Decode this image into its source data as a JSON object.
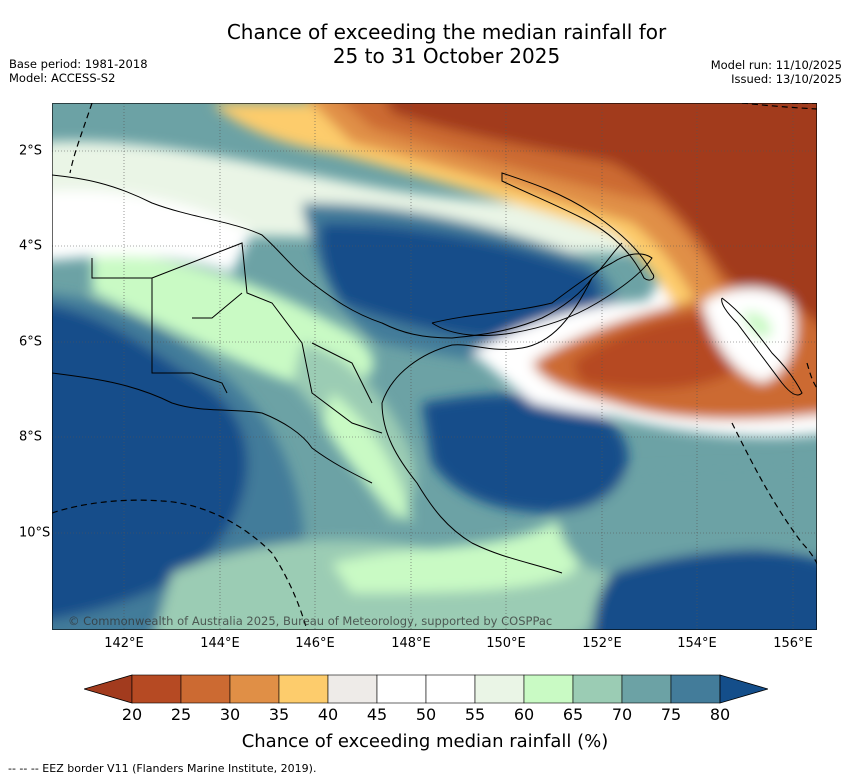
{
  "title": {
    "line1": "Chance of exceeding the median rainfall for",
    "line2": "25 to 31 October 2025"
  },
  "meta": {
    "base_period": "Base period: 1981-2018",
    "model": "Model: ACCESS-S2",
    "model_run": "Model run: 11/10/2025",
    "issued": "Issued: 13/10/2025"
  },
  "map": {
    "copyright": "© Commonwealth of Australia 2025, Bureau of Meteorology, supported by COSPPac",
    "lon_labels": [
      "142°E",
      "144°E",
      "146°E",
      "148°E",
      "150°E",
      "152°E",
      "154°E",
      "156°E"
    ],
    "lat_labels": [
      "2°S",
      "4°S",
      "6°S",
      "8°S",
      "10°S"
    ]
  },
  "colorbar": {
    "title": "Chance of exceeding median rainfall (%)",
    "ticks": [
      "20",
      "25",
      "30",
      "35",
      "40",
      "45",
      "50",
      "55",
      "60",
      "65",
      "70",
      "75",
      "80"
    ],
    "colors": {
      "under": "#a23b1e",
      "b20_25": "#b64a23",
      "b25_30": "#cc6a32",
      "b30_35": "#e08f46",
      "b35_40": "#fdcc6c",
      "b40_45": "#eeebe8",
      "b45_50": "#ffffff",
      "b50_55": "#ffffff",
      "b55_60": "#eaf5e6",
      "b60_65": "#c9fac4",
      "b65_70": "#9bccb4",
      "b70_75": "#6ca2a5",
      "b75_80": "#437c9a",
      "over": "#144e8a"
    }
  },
  "footer": "--  --  -- EEZ border V11 (Flanders Marine Institute, 2019)."
}
